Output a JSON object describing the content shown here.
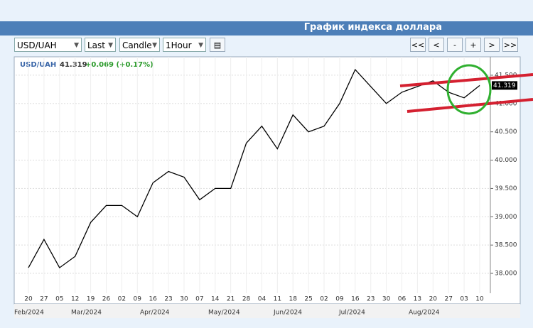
{
  "header": {
    "title": "График индекса доллара"
  },
  "toolbar": {
    "symbol": "USD/UAH",
    "price": "Last",
    "style": "Candle",
    "interval": "1Hour",
    "buttons": [
      "<<",
      "<",
      "-",
      "+",
      ">",
      ">>"
    ]
  },
  "chart_data": {
    "type": "line",
    "quote": {
      "symbol": "USD/UAH",
      "price": "41.319",
      "change": "+0.069 (+0.17%)"
    },
    "categories": [
      "20",
      "27",
      "05",
      "12",
      "19",
      "26",
      "02",
      "09",
      "16",
      "23",
      "30",
      "07",
      "14",
      "21",
      "28",
      "04",
      "11",
      "18",
      "25",
      "02",
      "09",
      "16",
      "23",
      "30",
      "06",
      "13",
      "20",
      "27",
      "03",
      "10"
    ],
    "values": [
      38.1,
      38.6,
      38.1,
      38.3,
      38.9,
      39.2,
      39.2,
      39.0,
      39.6,
      39.8,
      39.7,
      39.3,
      39.5,
      39.5,
      40.3,
      40.6,
      40.2,
      40.8,
      40.5,
      40.6,
      41.0,
      41.6,
      41.3,
      41.0,
      41.2,
      41.3,
      41.4,
      41.2,
      41.1,
      41.319
    ],
    "months": [
      "Feb/2024",
      "Mar/2024",
      "Apr/2024",
      "May/2024",
      "Jun/2024",
      "Jul/2024",
      "Aug/2024"
    ],
    "color": "#000000",
    "ylim": [
      37.8,
      41.75
    ],
    "yticks": [
      {
        "value": 38,
        "label": "38.000"
      },
      {
        "value": 38.5,
        "label": "38.500"
      },
      {
        "value": 39,
        "label": "39.000"
      },
      {
        "value": 39.5,
        "label": "39.500"
      },
      {
        "value": 40,
        "label": "40.000"
      },
      {
        "value": 40.5,
        "label": "40.500"
      },
      {
        "value": 41,
        "label": "41.000"
      },
      {
        "value": 41.5,
        "label": "41.500"
      }
    ],
    "last_label": "41.319",
    "grid": true
  }
}
